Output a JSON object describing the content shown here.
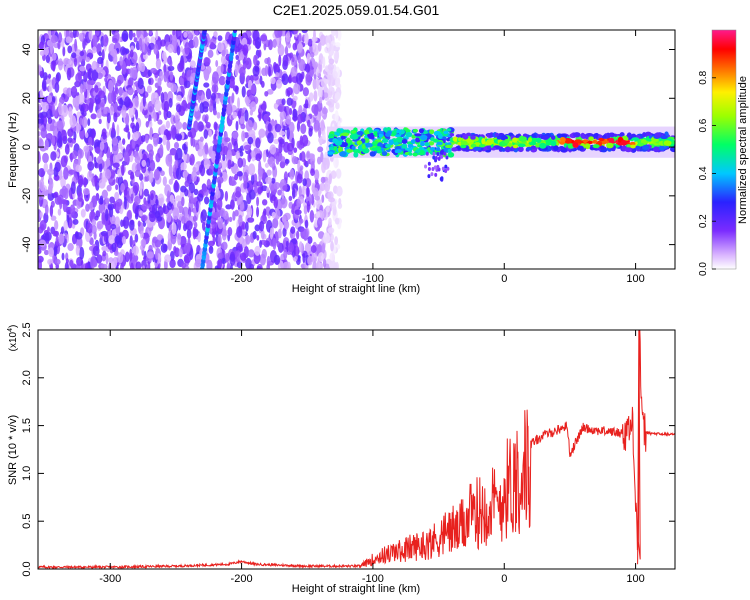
{
  "figure": {
    "title": "C2E1.2025.059.01.54.G01"
  },
  "chart_data": [
    {
      "type": "heatmap",
      "title": "C2E1.2025.059.01.54.G01",
      "xlabel": "Height of straight line (km)",
      "ylabel": "Frequency (Hz)",
      "xlim": [
        -355,
        130
      ],
      "ylim": [
        -50,
        48
      ],
      "x_ticks": [
        -300,
        -200,
        -100,
        0,
        100
      ],
      "x_tick_labels": [
        "-300",
        "-200",
        "-100",
        "0",
        "100"
      ],
      "y_ticks": [
        -40,
        -20,
        0,
        20,
        40
      ],
      "y_tick_labels": [
        "-40",
        "-20",
        "0",
        "20",
        "40"
      ],
      "colorbar": {
        "label": "Normalized spectral amplitude",
        "range": [
          0,
          1
        ],
        "ticks": [
          0.0,
          0.2,
          0.4,
          0.6,
          0.8
        ],
        "tick_labels": [
          "0.0",
          "0.2",
          "0.4",
          "0.6",
          "0.8"
        ],
        "colormap": "rainbow (white-violet-blue-cyan-green-yellow-red-magenta)"
      },
      "features": {
        "noise_region_x": [
          -355,
          -125
        ],
        "signal_band_x": [
          -135,
          130
        ],
        "signal_band_freq_center": 2,
        "signal_band_halfwidth_hz": 4,
        "max_amplitude_segment_x": [
          40,
          100
        ],
        "diagonal_streaks": [
          {
            "x_start": -240,
            "y_start": 8,
            "x_end": -228,
            "y_end": 48
          },
          {
            "x_start": -230,
            "y_start": -50,
            "x_end": -205,
            "y_end": 48
          }
        ]
      },
      "grid": false
    },
    {
      "type": "line",
      "xlabel": "Height of straight line (km)",
      "ylabel": "SNR (10 * v/v)",
      "scale_label": "(x10",
      "scale_exponent": "4",
      "scale_close": ")",
      "xlim": [
        -355,
        130
      ],
      "ylim": [
        0,
        2.5
      ],
      "x_ticks": [
        -300,
        -200,
        -100,
        0,
        100
      ],
      "x_tick_labels": [
        "-300",
        "-200",
        "-100",
        "0",
        "100"
      ],
      "y_ticks": [
        0,
        0.5,
        1.0,
        1.5,
        2.0,
        2.5
      ],
      "y_tick_labels": [
        "0.0",
        "0.5",
        "1.0",
        "1.5",
        "2.0",
        "2.5"
      ],
      "series": [
        {
          "color": "#e8211e",
          "x": [
            -355,
            -300,
            -250,
            -210,
            -200,
            -190,
            -150,
            -110,
            -100,
            -90,
            -80,
            -70,
            -60,
            -50,
            -40,
            -35,
            -30,
            -20,
            -10,
            -5,
            0,
            10,
            20,
            30,
            40,
            48,
            50,
            60,
            70,
            80,
            90,
            98,
            102,
            103,
            105,
            110,
            120,
            130
          ],
          "y": [
            0.02,
            0.02,
            0.03,
            0.05,
            0.08,
            0.05,
            0.03,
            0.03,
            0.12,
            0.18,
            0.22,
            0.27,
            0.3,
            0.38,
            0.5,
            0.45,
            0.6,
            0.7,
            0.8,
            0.75,
            0.95,
            1.15,
            1.3,
            1.4,
            1.45,
            1.5,
            1.2,
            1.48,
            1.45,
            1.44,
            1.42,
            1.5,
            0.1,
            2.5,
            1.45,
            1.42,
            1.41,
            1.41
          ]
        }
      ],
      "grid": false
    }
  ]
}
